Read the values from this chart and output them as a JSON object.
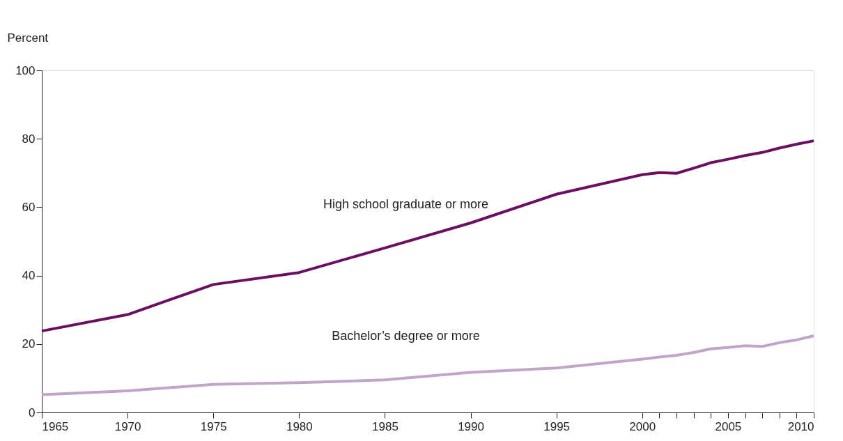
{
  "chart_data": {
    "type": "line",
    "ylabel": "Percent",
    "x": [
      1965,
      1970,
      1975,
      1980,
      1985,
      1990,
      1995,
      2000,
      2001,
      2002,
      2003,
      2004,
      2005,
      2006,
      2007,
      2008,
      2009,
      2010
    ],
    "series": [
      {
        "name": "High school graduate or more",
        "color": "#6b0f61",
        "values": [
          23.8,
          28.6,
          37.4,
          40.9,
          48.1,
          55.4,
          63.8,
          69.5,
          70.1,
          69.9,
          71.4,
          73.0,
          74.0,
          75.1,
          76.0,
          77.3,
          78.4,
          79.4
        ]
      },
      {
        "name": "Bachelor’s degree or more",
        "color": "#c0a5c8",
        "values": [
          5.2,
          6.3,
          8.2,
          8.7,
          9.5,
          11.7,
          13.0,
          15.6,
          16.2,
          16.7,
          17.5,
          18.6,
          19.0,
          19.5,
          19.3,
          20.4,
          21.2,
          22.4
        ]
      }
    ],
    "xlim": [
      1965,
      2010
    ],
    "xticks": [
      1965,
      1970,
      1975,
      1980,
      1985,
      1990,
      1995,
      2000,
      {
        "value": 2001,
        "label": null
      },
      {
        "value": 2002,
        "label": null
      },
      {
        "value": 2003,
        "label": null
      },
      {
        "value": 2004,
        "label": null
      },
      2005,
      {
        "value": 2006,
        "label": null
      },
      {
        "value": 2007,
        "label": null
      },
      {
        "value": 2008,
        "label": null
      },
      {
        "value": 2009,
        "label": null
      },
      2010
    ],
    "ylim": [
      0,
      100
    ],
    "yticks": [
      0,
      20,
      40,
      60,
      80,
      100
    ],
    "grid": false,
    "legend": false,
    "marker": "none",
    "line_style": "solid"
  }
}
